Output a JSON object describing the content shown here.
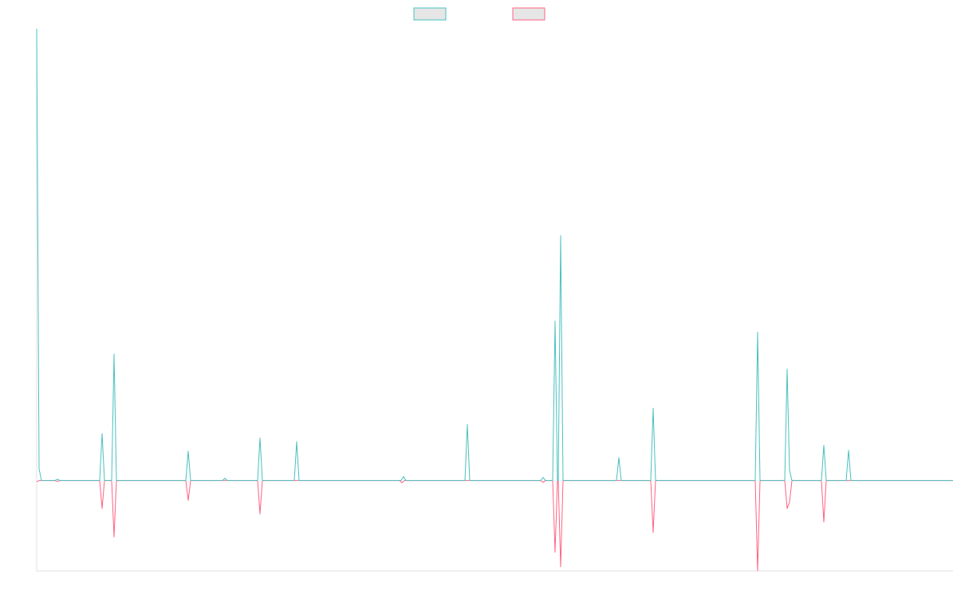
{
  "chart_data": {
    "type": "line",
    "legend": "top",
    "xlim": [
      0,
      1149
    ],
    "ylim": [
      -20,
      100
    ],
    "series": [
      {
        "color": "#4bc0c0",
        "x": [
          0,
          3,
          6,
          23,
          26,
          29,
          79,
          82,
          85,
          94,
          97,
          100,
          187,
          190,
          193,
          233,
          236,
          239,
          277,
          280,
          283,
          323,
          326,
          329,
          457,
          460,
          463,
          537,
          540,
          543,
          632,
          635,
          638,
          647,
          650,
          653,
          654,
          657,
          660,
          727,
          730,
          733,
          770,
          773,
          776,
          901,
          904,
          907,
          938,
          941,
          944,
          947,
          984,
          987,
          990,
          1015,
          1018,
          1021,
          1149
        ],
        "values": [
          100,
          2.6,
          0,
          0,
          0.3,
          0,
          0,
          10.4,
          0,
          0,
          28,
          0,
          0,
          6.5,
          0,
          0,
          0.5,
          0,
          0,
          9.4,
          0,
          0,
          8.6,
          0,
          0,
          0.9,
          0,
          0,
          12.4,
          0,
          0,
          0.7,
          0,
          0,
          35.3,
          0,
          0,
          54.2,
          0,
          0,
          5.1,
          0,
          0,
          16,
          0,
          0,
          32.8,
          0,
          0,
          24.7,
          2.3,
          0,
          0,
          7.8,
          0,
          0,
          6.7,
          0,
          0
        ]
      },
      {
        "color": "#ff6384",
        "x": [
          0,
          3,
          23,
          26,
          29,
          79,
          82,
          85,
          94,
          97,
          100,
          187,
          190,
          193,
          277,
          280,
          283,
          455,
          458,
          461,
          632,
          635,
          638,
          647,
          650,
          653,
          654,
          657,
          660,
          770,
          773,
          776,
          901,
          904,
          907,
          938,
          941,
          944,
          947,
          984,
          987,
          990,
          1149
        ],
        "values": [
          -0.3,
          0,
          0,
          -0.2,
          0,
          0,
          -6.2,
          0,
          0,
          -12.5,
          0,
          0,
          -4.4,
          0,
          0,
          -7.4,
          0,
          0,
          -0.5,
          0,
          0,
          -0.4,
          0,
          0,
          -15.9,
          0,
          0,
          -19.1,
          0,
          0,
          -11.5,
          0,
          0,
          -20,
          0,
          0,
          -6.2,
          -4.8,
          0,
          0,
          -9.2,
          0,
          0
        ]
      }
    ]
  }
}
